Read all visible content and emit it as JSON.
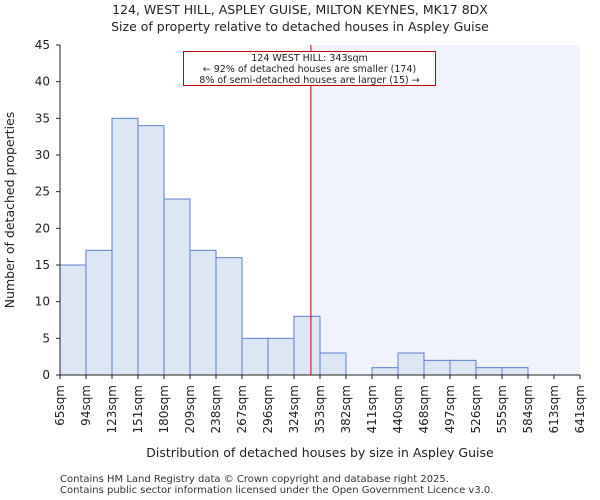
{
  "chart_data": {
    "type": "bar",
    "title": "124, WEST HILL, ASPLEY GUISE, MILTON KEYNES, MK17 8DX",
    "subtitle": "Size of property relative to detached houses in Aspley Guise",
    "xlabel": "Distribution of detached houses by size in Aspley Guise",
    "ylabel": "Number of detached properties",
    "ylim": [
      0,
      45
    ],
    "yticks": [
      0,
      5,
      10,
      15,
      20,
      25,
      30,
      35,
      40,
      45
    ],
    "x_tick_labels": [
      "65sqm",
      "94sqm",
      "123sqm",
      "151sqm",
      "180sqm",
      "209sqm",
      "238sqm",
      "267sqm",
      "296sqm",
      "324sqm",
      "353sqm",
      "382sqm",
      "411sqm",
      "440sqm",
      "468sqm",
      "497sqm",
      "526sqm",
      "555sqm",
      "584sqm",
      "613sqm",
      "641sqm"
    ],
    "values": [
      15,
      17,
      35,
      34,
      24,
      17,
      16,
      5,
      5,
      8,
      3,
      0,
      1,
      3,
      2,
      2,
      1,
      1,
      0,
      0
    ],
    "marker_value": 343,
    "marker_bin_position": 9.65,
    "bar_fill": "#dce6f5",
    "bar_edge": "#5b7fc7",
    "highlight_fill": "#f0f3fb",
    "marker_color": "#c00000",
    "annotation": {
      "line1": "124 WEST HILL: 343sqm",
      "line2": "← 92% of detached houses are smaller (174)",
      "line3": "8% of semi-detached houses are larger (15) →"
    }
  },
  "footer": {
    "line1": "Contains HM Land Registry data © Crown copyright and database right 2025.",
    "line2": "Contains public sector information licensed under the Open Government Licence v3.0."
  }
}
